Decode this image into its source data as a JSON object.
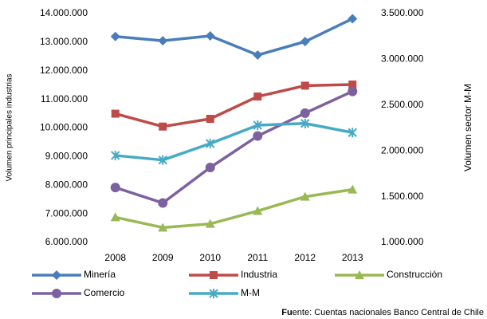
{
  "chart_data": {
    "type": "line",
    "categories": [
      "2008",
      "2009",
      "2010",
      "2011",
      "2012",
      "2013"
    ],
    "y_label": "Volumen principales industrias",
    "y2_label": "Volumen sector M-M",
    "ylim": [
      6000000,
      14000000
    ],
    "yticks": [
      {
        "value": 6000000,
        "label": "6.000.000"
      },
      {
        "value": 7000000,
        "label": "7.000.000"
      },
      {
        "value": 8000000,
        "label": "8.000.000"
      },
      {
        "value": 9000000,
        "label": "9.000.000"
      },
      {
        "value": 10000000,
        "label": "10.000.000"
      },
      {
        "value": 11000000,
        "label": "11.000.000"
      },
      {
        "value": 12000000,
        "label": "12.000.000"
      },
      {
        "value": 13000000,
        "label": "13.000.000"
      },
      {
        "value": 14000000,
        "label": "14.000.000"
      }
    ],
    "y2lim": [
      1000000,
      3500000
    ],
    "y2ticks": [
      {
        "value": 1000000,
        "label": "1.000.000"
      },
      {
        "value": 1500000,
        "label": "1.500.000"
      },
      {
        "value": 2000000,
        "label": "2.000.000"
      },
      {
        "value": 2500000,
        "label": "2.500.000"
      },
      {
        "value": 3000000,
        "label": "3.000.000"
      },
      {
        "value": 3500000,
        "label": "3.500.000"
      }
    ],
    "grid": false,
    "legend": "bottom",
    "series": [
      {
        "name": "Minería",
        "color": "#4a7ebb",
        "marker": "diamond",
        "values": [
          13200000,
          13050000,
          13220000,
          12550000,
          13020000,
          13820000
        ]
      },
      {
        "name": "Industria",
        "color": "#be4b48",
        "marker": "square",
        "values": [
          10500000,
          10050000,
          10320000,
          11100000,
          11480000,
          11520000
        ]
      },
      {
        "name": "Construcción",
        "color": "#98b954",
        "marker": "triangle",
        "values": [
          6880000,
          6520000,
          6650000,
          7100000,
          7600000,
          7850000
        ]
      },
      {
        "name": "Comercio",
        "color": "#7d60a0",
        "marker": "circle",
        "values": [
          7920000,
          7380000,
          8620000,
          9720000,
          10520000,
          11280000
        ]
      },
      {
        "name": "M-M",
        "color": "#46aac5",
        "marker": "asterisk",
        "axis": "y2",
        "values": [
          1950000,
          1900000,
          2080000,
          2280000,
          2300000,
          2200000
        ]
      }
    ],
    "source_bold": "Fu",
    "source_rest": "ente: Cuentas nacionales Banco Central de Chile"
  }
}
